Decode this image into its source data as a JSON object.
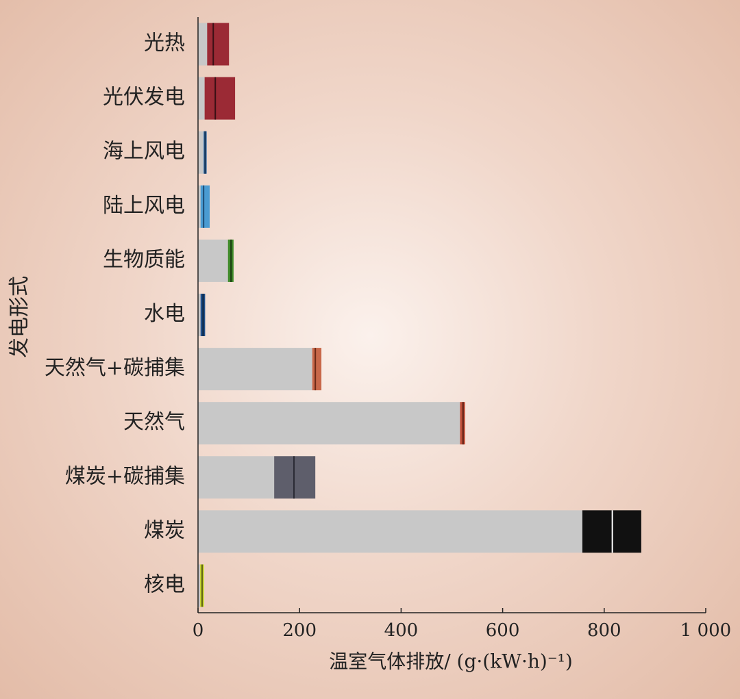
{
  "chart_data": {
    "type": "range_bar",
    "y_label": "发电形式",
    "x_label": "温室气体排放/ (g·(kW·h)⁻¹)",
    "categories": [
      "光热",
      "光伏发电",
      "海上风电",
      "陆上风电",
      "生物质能",
      "水电",
      "天然气+碳捕集",
      "天然气",
      "煤炭+碳捕集",
      "煤炭",
      "核电"
    ],
    "min": [
      18,
      13,
      11,
      5,
      59,
      5,
      225,
      516,
      150,
      757,
      4
    ],
    "median": [
      30,
      34,
      14,
      11,
      65,
      10,
      231,
      522,
      189,
      816,
      8
    ],
    "max": [
      61,
      73,
      17,
      23,
      70,
      14,
      243,
      526,
      231,
      873,
      12
    ],
    "base_color": "#c8c8c8",
    "colors": [
      "#9b2a35",
      "#9b2a35",
      "#2f6aa6",
      "#4a9bd2",
      "#3f8a2a",
      "#1f4f8a",
      "#c8684a",
      "#c0503a",
      "#5e5e6b",
      "#111111",
      "#c8d43a"
    ],
    "median_colors": [
      "#3a1015",
      "#3a1015",
      "#15304f",
      "#1d4d75",
      "#173a10",
      "#0d2540",
      "#6a2a18",
      "#5a2015",
      "#2a2a33",
      "#ffffff",
      "#5a6010"
    ],
    "xlim": [
      0,
      1000
    ],
    "xticks": [
      0,
      200,
      400,
      600,
      800,
      {
        "value": 1000,
        "label": "1 000"
      }
    ]
  }
}
